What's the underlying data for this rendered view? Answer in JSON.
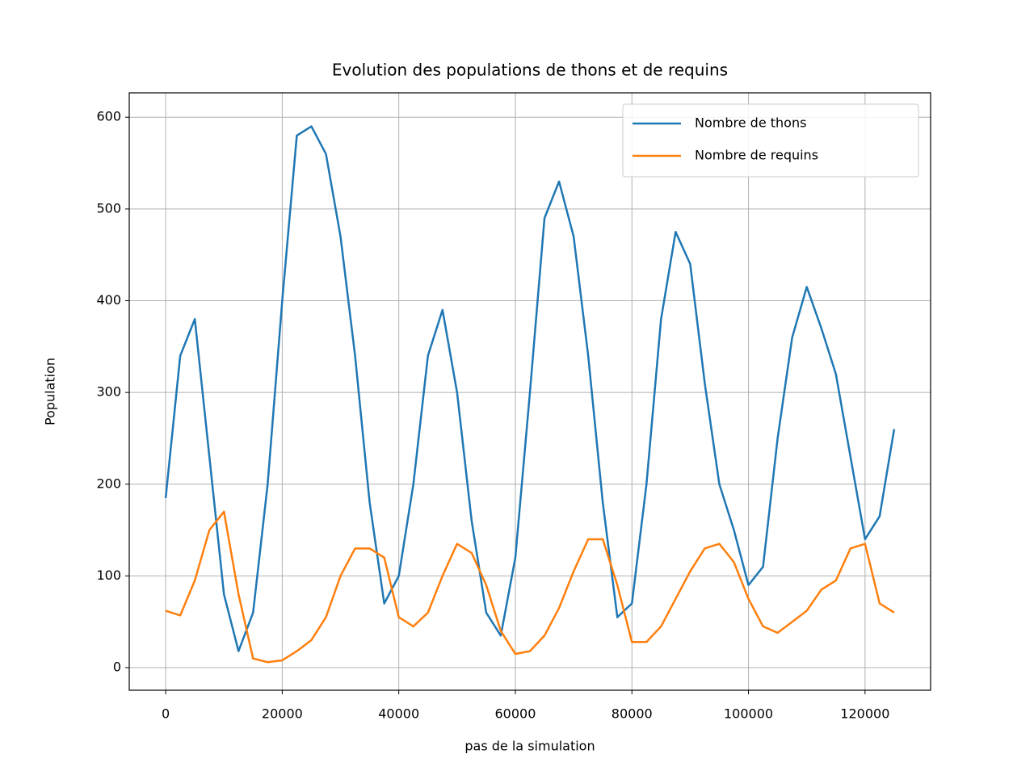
{
  "chart_data": {
    "type": "line",
    "title": "Evolution des populations de thons et de requins",
    "x_label": "pas de la simulation",
    "y_label": "Population",
    "x": [
      0,
      2500,
      5000,
      7500,
      10000,
      12500,
      15000,
      17500,
      20000,
      22500,
      25000,
      27500,
      30000,
      32500,
      35000,
      37500,
      40000,
      42500,
      45000,
      47500,
      50000,
      52500,
      55000,
      57500,
      60000,
      62500,
      65000,
      67500,
      70000,
      72500,
      75000,
      77500,
      80000,
      82500,
      85000,
      87500,
      90000,
      92500,
      95000,
      97500,
      100000,
      102500,
      105000,
      107500,
      110000,
      112500,
      115000,
      117500,
      120000,
      122500,
      125000
    ],
    "series": [
      {
        "name": "Nombre de thons",
        "color": "#1f77b4",
        "values": [
          185,
          340,
          380,
          230,
          80,
          18,
          60,
          200,
          400,
          580,
          590,
          560,
          470,
          340,
          180,
          70,
          100,
          200,
          340,
          390,
          300,
          160,
          60,
          35,
          120,
          300,
          490,
          530,
          470,
          340,
          180,
          55,
          70,
          200,
          380,
          475,
          440,
          310,
          200,
          150,
          90,
          110,
          250,
          360,
          415,
          370,
          320,
          230,
          140,
          165,
          260
        ]
      },
      {
        "name": "Nombre de requins",
        "color": "#ff7f0e",
        "values": [
          62,
          57,
          95,
          150,
          170,
          80,
          10,
          6,
          8,
          18,
          30,
          55,
          100,
          130,
          130,
          120,
          55,
          45,
          60,
          100,
          135,
          125,
          90,
          40,
          15,
          18,
          35,
          65,
          105,
          140,
          140,
          90,
          28,
          28,
          45,
          75,
          105,
          130,
          135,
          115,
          75,
          45,
          38,
          50,
          62,
          85,
          95,
          130,
          135,
          70,
          60
        ]
      }
    ],
    "xlim": [
      -6250,
      131250
    ],
    "ylim": [
      -24.6,
      626.6
    ],
    "xticks": [
      0,
      20000,
      40000,
      60000,
      80000,
      100000,
      120000
    ],
    "yticks": [
      0,
      100,
      200,
      300,
      400,
      500,
      600
    ],
    "grid": true,
    "legend": "upper right"
  }
}
